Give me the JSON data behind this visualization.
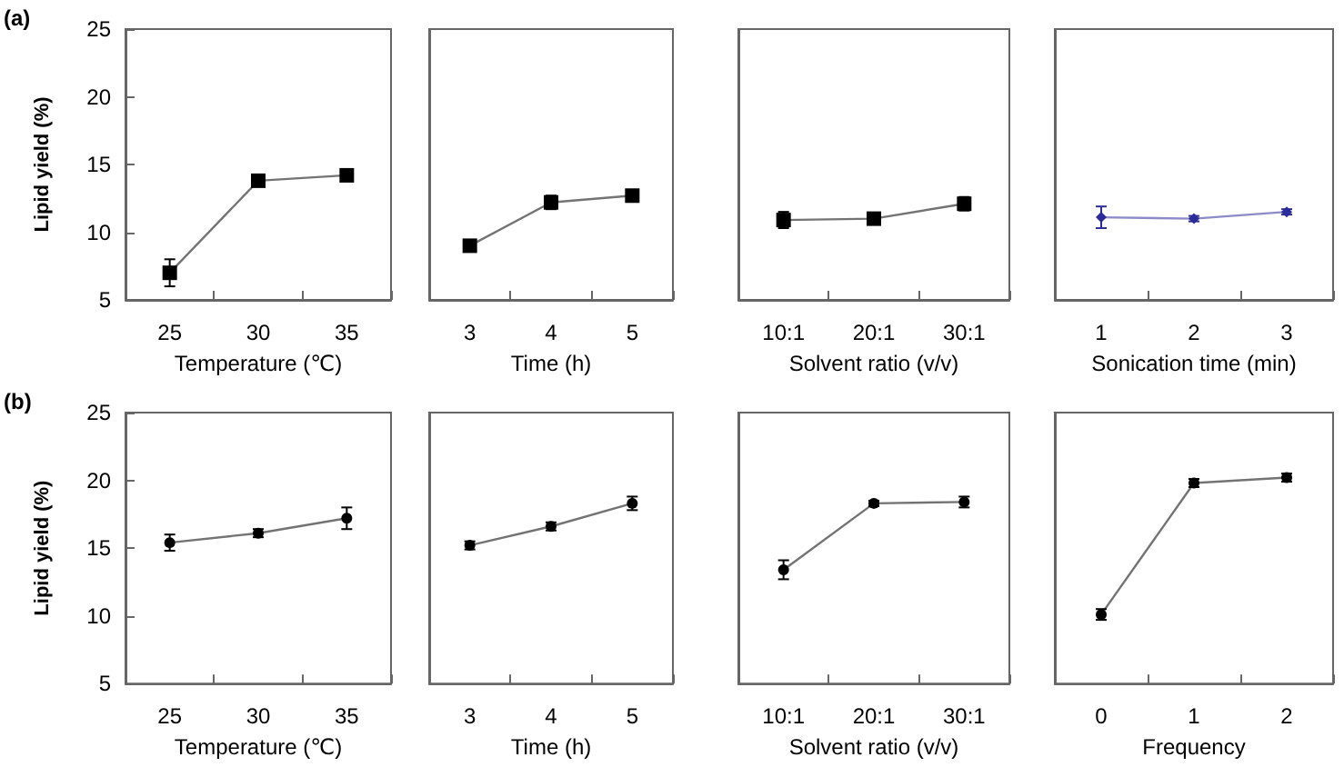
{
  "chart_data": [
    {
      "type": "line",
      "annotations": [
        "(a)"
      ],
      "categories": [
        "25",
        "30",
        "35"
      ],
      "values": [
        7.0,
        13.8,
        14.2
      ],
      "errors": [
        1.0,
        0.3,
        0.2
      ],
      "color": "#000000",
      "marker": "square",
      "xlabel": "Temperature (℃)",
      "ylabel": "Lipid yield (%)",
      "ylim": [
        5,
        25
      ],
      "yticks": [
        5,
        10,
        15,
        20,
        25
      ]
    },
    {
      "type": "line",
      "categories": [
        "3",
        "4",
        "5"
      ],
      "values": [
        9.0,
        12.2,
        12.7
      ],
      "errors": [
        0.3,
        0.5,
        0.3
      ],
      "color": "#000000",
      "marker": "square",
      "xlabel": "Time (h)",
      "ylim": [
        5,
        25
      ],
      "tick_labels": "x"
    },
    {
      "type": "line",
      "categories": [
        "10:1",
        "20:1",
        "30:1"
      ],
      "values": [
        10.9,
        11.0,
        12.1
      ],
      "errors": [
        0.6,
        0.2,
        0.5
      ],
      "color": "#000000",
      "marker": "square",
      "xlabel": "Solvent ratio (v/v)",
      "ylim": [
        5,
        25
      ],
      "tick_labels": "x"
    },
    {
      "type": "line",
      "categories": [
        "1",
        "2",
        "3"
      ],
      "values": [
        11.1,
        11.0,
        11.5
      ],
      "errors": [
        0.8,
        0.2,
        0.2
      ],
      "color": "#2b2b9a",
      "marker": "diamond",
      "xlabel": "Sonication time (min)",
      "ylim": [
        5,
        25
      ],
      "tick_labels": "x"
    },
    {
      "type": "line",
      "annotations": [
        "(b)"
      ],
      "categories": [
        "25",
        "30",
        "35"
      ],
      "values": [
        15.4,
        16.1,
        17.2
      ],
      "errors": [
        0.6,
        0.3,
        0.8
      ],
      "color": "#000000",
      "marker": "circle",
      "xlabel": "Temperature (℃)",
      "ylabel": "Lipid yield (%)",
      "ylim": [
        5,
        25
      ],
      "yticks": [
        5,
        10,
        15,
        20,
        25
      ]
    },
    {
      "type": "line",
      "categories": [
        "3",
        "4",
        "5"
      ],
      "values": [
        15.2,
        16.6,
        18.3
      ],
      "errors": [
        0.3,
        0.3,
        0.5
      ],
      "color": "#000000",
      "marker": "circle",
      "xlabel": "Time (h)",
      "ylim": [
        5,
        25
      ],
      "tick_labels": "x"
    },
    {
      "type": "line",
      "categories": [
        "10:1",
        "20:1",
        "30:1"
      ],
      "values": [
        13.4,
        18.3,
        18.4
      ],
      "errors": [
        0.7,
        0.2,
        0.4
      ],
      "color": "#000000",
      "marker": "circle",
      "xlabel": "Solvent ratio (v/v)",
      "ylim": [
        5,
        25
      ],
      "tick_labels": "x"
    },
    {
      "type": "line",
      "categories": [
        "0",
        "1",
        "2"
      ],
      "values": [
        10.1,
        19.8,
        20.2
      ],
      "errors": [
        0.4,
        0.3,
        0.3
      ],
      "color": "#000000",
      "marker": "circle",
      "xlabel": "Frequency",
      "ylim": [
        5,
        25
      ],
      "tick_labels": "x"
    }
  ]
}
